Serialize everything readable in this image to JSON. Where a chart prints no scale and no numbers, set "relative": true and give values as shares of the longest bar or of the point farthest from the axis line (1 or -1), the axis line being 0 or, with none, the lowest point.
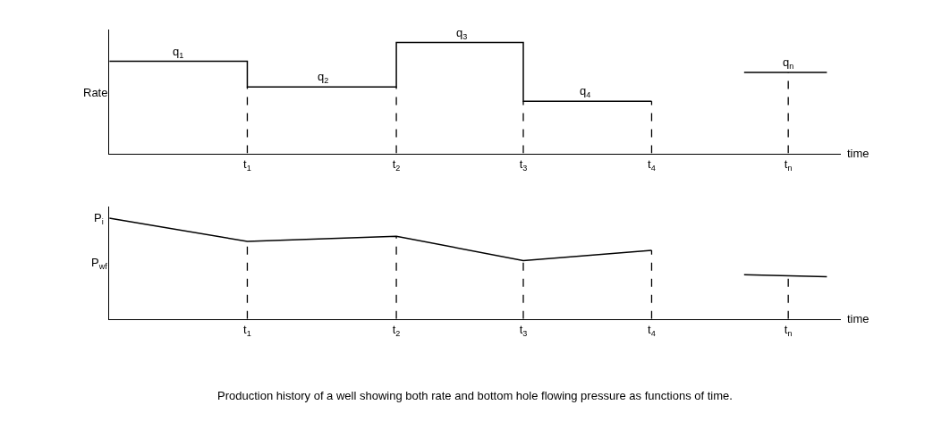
{
  "chart_data": [
    {
      "type": "step",
      "relative": true,
      "ylabel": "Rate",
      "xlabel": "time",
      "xlim": [
        0,
        5.3
      ],
      "xticks": [
        {
          "value": 1,
          "label": "t$_{1}$"
        },
        {
          "value": 2.08,
          "label": "t$_{2}$"
        },
        {
          "value": 3,
          "label": "t$_{3}$"
        },
        {
          "value": 3.93,
          "label": "t$_{4}$"
        },
        {
          "value": 4.92,
          "label": "t$_{n}$"
        }
      ],
      "tick_labels": "x",
      "series": [
        {
          "color": "#000000",
          "x": [
            0,
            1,
            2.08,
            3,
            3.93
          ],
          "values": [
            0.83,
            0.6,
            1,
            0.47,
            0.47
          ]
        },
        {
          "color": "#000000",
          "x": [
            4.6,
            5.2
          ],
          "values": [
            0.73,
            0.73
          ]
        }
      ],
      "annotations": [
        {
          "text": "q$_{1}$",
          "x": 0.5,
          "y": 0.83
        },
        {
          "text": "q$_{2}$",
          "x": 1.55,
          "y": 0.6
        },
        {
          "text": "q$_{3}$",
          "x": 2.55,
          "y": 1
        },
        {
          "text": "q$_{4}$",
          "x": 3.45,
          "y": 0.47
        },
        {
          "text": "q$_{n}$",
          "x": 4.92,
          "y": 0.73
        }
      ],
      "ref_lines": [
        {
          "axis": "x",
          "value": 1,
          "line_style": "dashed"
        },
        {
          "axis": "x",
          "value": 2.08,
          "line_style": "dashed"
        },
        {
          "axis": "x",
          "value": 3,
          "line_style": "dashed"
        },
        {
          "axis": "x",
          "value": 3.93,
          "line_style": "dashed"
        },
        {
          "axis": "x",
          "value": 4.92,
          "line_style": "dashed"
        }
      ]
    },
    {
      "type": "line",
      "relative": true,
      "ylabel": "P$_{wf}$",
      "xlabel": "time",
      "xlim": [
        0,
        5.3
      ],
      "xticks": [
        {
          "value": 1,
          "label": "t$_{1}$"
        },
        {
          "value": 2.08,
          "label": "t$_{2}$"
        },
        {
          "value": 3,
          "label": "t$_{3}$"
        },
        {
          "value": 3.93,
          "label": "t$_{4}$"
        },
        {
          "value": 4.92,
          "label": "t$_{n}$"
        }
      ],
      "tick_labels": "x",
      "series": [
        {
          "color": "#000000",
          "x": [
            0,
            1,
            2.08,
            3,
            3.93
          ],
          "values": [
            1,
            0.77,
            0.82,
            0.58,
            0.68
          ]
        },
        {
          "color": "#000000",
          "x": [
            4.6,
            5.2
          ],
          "values": [
            0.44,
            0.42
          ]
        }
      ],
      "annotations": [
        {
          "text": "P$_{i}$",
          "x": 0,
          "y": 1
        },
        "Production history of a well showing both rate and bottom hole flowing pressure as functions of time."
      ],
      "ref_lines": [
        {
          "axis": "x",
          "value": 1,
          "line_style": "dashed"
        },
        {
          "axis": "x",
          "value": 2.08,
          "line_style": "dashed"
        },
        {
          "axis": "x",
          "value": 3,
          "line_style": "dashed"
        },
        {
          "axis": "x",
          "value": 3.93,
          "line_style": "dashed"
        },
        {
          "axis": "x",
          "value": 4.92,
          "line_style": "dashed"
        }
      ]
    }
  ]
}
